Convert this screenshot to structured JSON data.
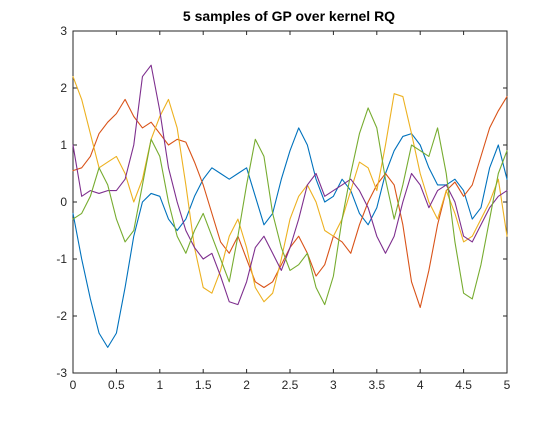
{
  "chart_data": {
    "type": "line",
    "title": "5 samples of GP over kernel RQ",
    "xlabel": "",
    "ylabel": "",
    "xlim": [
      0,
      5
    ],
    "ylim": [
      -3,
      3
    ],
    "xticks": [
      0,
      0.5,
      1,
      1.5,
      2,
      2.5,
      3,
      3.5,
      4,
      4.5,
      5
    ],
    "xtick_labels": [
      "0",
      "0.5",
      "1",
      "1.5",
      "2",
      "2.5",
      "3",
      "3.5",
      "4",
      "4.5",
      "5"
    ],
    "yticks": [
      -3,
      -2,
      -1,
      0,
      1,
      2,
      3
    ],
    "ytick_labels": [
      "-3",
      "-2",
      "-1",
      "0",
      "1",
      "2",
      "3"
    ],
    "grid": false,
    "x": [
      0,
      0.1,
      0.2,
      0.3,
      0.4,
      0.5,
      0.6,
      0.7,
      0.8,
      0.9,
      1.0,
      1.1,
      1.2,
      1.3,
      1.4,
      1.5,
      1.6,
      1.7,
      1.8,
      1.9,
      2.0,
      2.1,
      2.2,
      2.3,
      2.4,
      2.5,
      2.6,
      2.7,
      2.8,
      2.9,
      3.0,
      3.1,
      3.2,
      3.3,
      3.4,
      3.5,
      3.6,
      3.7,
      3.8,
      3.9,
      4.0,
      4.1,
      4.2,
      4.3,
      4.4,
      4.5,
      4.6,
      4.7,
      4.8,
      4.9,
      5.0
    ],
    "series": [
      {
        "color": "#0072BD",
        "values": [
          -0.2,
          -1.0,
          -1.7,
          -2.3,
          -2.55,
          -2.3,
          -1.5,
          -0.6,
          0.0,
          0.15,
          0.1,
          -0.3,
          -0.5,
          -0.3,
          0.1,
          0.4,
          0.6,
          0.5,
          0.4,
          0.5,
          0.6,
          0.1,
          -0.4,
          -0.2,
          0.4,
          0.9,
          1.3,
          1.0,
          0.4,
          0.0,
          0.1,
          0.4,
          0.2,
          -0.2,
          -0.4,
          -0.1,
          0.5,
          0.9,
          1.15,
          1.2,
          1.0,
          0.6,
          0.3,
          0.3,
          0.4,
          0.2,
          -0.3,
          -0.1,
          0.6,
          1.0,
          0.4
        ]
      },
      {
        "color": "#D95319",
        "values": [
          0.55,
          0.6,
          0.8,
          1.2,
          1.4,
          1.55,
          1.8,
          1.5,
          1.3,
          1.4,
          1.2,
          1.0,
          1.1,
          1.05,
          0.7,
          0.3,
          -0.2,
          -0.7,
          -0.9,
          -0.6,
          -1.0,
          -1.4,
          -1.5,
          -1.4,
          -1.1,
          -0.8,
          -0.6,
          -0.9,
          -1.3,
          -1.1,
          -0.6,
          -0.7,
          -0.9,
          -0.4,
          0.0,
          0.3,
          0.5,
          0.3,
          -0.4,
          -1.4,
          -1.85,
          -1.2,
          -0.4,
          0.2,
          0.35,
          0.1,
          0.3,
          0.8,
          1.3,
          1.6,
          1.85
        ]
      },
      {
        "color": "#EDB120",
        "values": [
          2.2,
          1.8,
          1.2,
          0.6,
          0.7,
          0.8,
          0.5,
          0.0,
          0.4,
          1.1,
          1.5,
          1.8,
          1.3,
          0.3,
          -0.8,
          -1.5,
          -1.6,
          -1.2,
          -0.6,
          -0.3,
          -0.8,
          -1.5,
          -1.75,
          -1.6,
          -1.0,
          -0.3,
          0.1,
          0.3,
          0.0,
          -0.5,
          -0.6,
          -0.3,
          0.2,
          0.7,
          0.6,
          0.2,
          1.0,
          1.9,
          1.85,
          1.2,
          0.5,
          0.0,
          -0.3,
          0.2,
          -0.2,
          -0.7,
          -0.6,
          -0.3,
          0.0,
          0.4,
          -0.6
        ]
      },
      {
        "color": "#7E2F8E",
        "values": [
          1.0,
          0.1,
          0.2,
          0.15,
          0.2,
          0.2,
          0.4,
          1.0,
          2.2,
          2.4,
          1.6,
          0.6,
          0.0,
          -0.5,
          -0.8,
          -1.0,
          -0.9,
          -1.3,
          -1.75,
          -1.8,
          -1.4,
          -0.8,
          -0.6,
          -0.9,
          -1.2,
          -0.8,
          -0.3,
          0.3,
          0.5,
          0.1,
          0.2,
          0.3,
          0.4,
          0.2,
          -0.1,
          -0.6,
          -0.9,
          -0.6,
          0.0,
          0.5,
          0.3,
          -0.1,
          0.2,
          0.3,
          0.0,
          -0.6,
          -0.7,
          -0.4,
          -0.1,
          0.1,
          0.2
        ]
      },
      {
        "color": "#77AC30",
        "values": [
          -0.3,
          -0.2,
          0.1,
          0.6,
          0.3,
          -0.3,
          -0.7,
          -0.5,
          0.3,
          1.1,
          0.8,
          0.0,
          -0.6,
          -0.9,
          -0.5,
          -0.2,
          -0.6,
          -1.0,
          -1.4,
          -0.6,
          0.3,
          1.1,
          0.8,
          -0.2,
          -0.8,
          -1.2,
          -1.1,
          -0.9,
          -1.5,
          -1.8,
          -1.3,
          -0.3,
          0.5,
          1.2,
          1.65,
          1.3,
          0.4,
          -0.3,
          0.3,
          1.0,
          0.9,
          0.8,
          1.3,
          0.5,
          -0.7,
          -1.6,
          -1.7,
          -1.1,
          -0.3,
          0.5,
          0.9
        ]
      }
    ]
  }
}
